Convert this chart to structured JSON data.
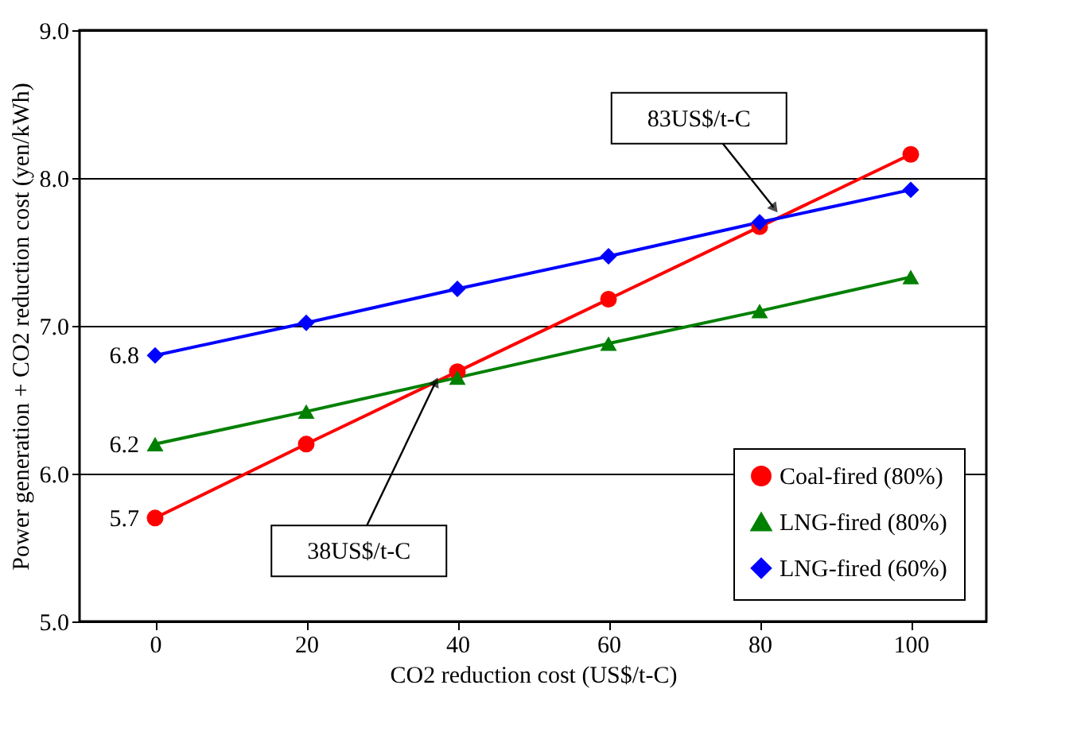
{
  "chart_data": {
    "type": "line",
    "xlabel": "CO2 reduction cost (US$/t-C)",
    "ylabel": "Power generation + CO2 reduction cost (yen/kWh)",
    "x": [
      0,
      20,
      40,
      60,
      80,
      100
    ],
    "series": [
      {
        "name": "Coal-fired (80%)",
        "color": "#ff0000",
        "marker": "circle",
        "values": [
          5.7,
          6.2,
          6.69,
          7.18,
          7.67,
          8.16
        ],
        "value_labels": [
          "5.7",
          null,
          null,
          null,
          null,
          null
        ]
      },
      {
        "name": "LNG-fired (80%)",
        "color": "#008000",
        "marker": "triangle",
        "values": [
          6.2,
          6.42,
          6.65,
          6.88,
          7.1,
          7.33
        ],
        "value_labels": [
          "6.2",
          null,
          null,
          null,
          null,
          null
        ]
      },
      {
        "name": "LNG-fired (60%)",
        "color": "#0000ff",
        "marker": "diamond",
        "values": [
          6.8,
          7.02,
          7.25,
          7.47,
          7.7,
          7.92
        ],
        "value_labels": [
          "6.8",
          null,
          null,
          null,
          null,
          null
        ]
      }
    ],
    "xlim": [
      -10,
      110
    ],
    "xticks": [
      0,
      20,
      40,
      60,
      80,
      100
    ],
    "ylim": [
      5.0,
      9.0
    ],
    "yticks": [
      {
        "value": 5,
        "label": "5.0"
      },
      {
        "value": 6,
        "label": "6.0"
      },
      {
        "value": 7,
        "label": "7.0"
      },
      {
        "value": 8,
        "label": "8.0"
      },
      {
        "value": 9,
        "label": "9.0"
      }
    ],
    "grid": "y",
    "legend": "bottom right",
    "line_style": "solid",
    "annotations": [
      {
        "text": "83US$/t-C",
        "x": 82.5,
        "y": 7.76
      },
      {
        "text": "38US$/t-C",
        "x": 37.5,
        "y": 6.66
      }
    ]
  }
}
